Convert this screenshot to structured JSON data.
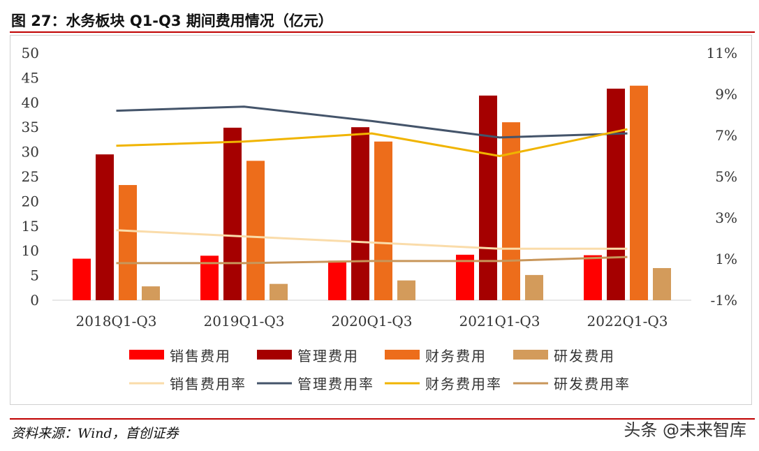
{
  "title": "图 27：水务板块  Q1-Q3 期间费用情况（亿元）",
  "source": "资料来源：Wind，首创证券",
  "watermark": "头条 @未来智库",
  "chart_data": {
    "type": "bar",
    "title": "",
    "categories": [
      "2018Q1-Q3",
      "2019Q1-Q3",
      "2020Q1-Q3",
      "2021Q1-Q3",
      "2022Q1-Q3"
    ],
    "ylim": [
      0,
      50
    ],
    "yticks": [
      0,
      5,
      10,
      15,
      20,
      25,
      30,
      35,
      40,
      45,
      50
    ],
    "y2lim": [
      -1,
      11
    ],
    "y2ticks": [
      -1,
      1,
      3,
      5,
      7,
      9,
      11
    ],
    "y2tick_labels": [
      "-1%",
      "1%",
      "3%",
      "5%",
      "7%",
      "9%",
      "11%"
    ],
    "grid": false,
    "legend_position": "bottom",
    "series": [
      {
        "name": "销售费用",
        "kind": "bar",
        "axis": "left",
        "color": "#ff0000",
        "values": [
          8.4,
          9.0,
          8.0,
          9.2,
          9.1
        ]
      },
      {
        "name": "管理费用",
        "kind": "bar",
        "axis": "left",
        "color": "#a50000",
        "values": [
          29.5,
          34.9,
          35.0,
          41.4,
          42.8
        ]
      },
      {
        "name": "财务费用",
        "kind": "bar",
        "axis": "left",
        "color": "#ed6d1b",
        "values": [
          23.3,
          28.2,
          32.1,
          36.0,
          43.4
        ]
      },
      {
        "name": "研发费用",
        "kind": "bar",
        "axis": "left",
        "color": "#d39b5b",
        "values": [
          2.8,
          3.3,
          4.0,
          5.1,
          6.5
        ]
      },
      {
        "name": "销售费用率",
        "kind": "line",
        "axis": "right",
        "color": "#fadcaa",
        "values": [
          2.4,
          2.1,
          1.8,
          1.5,
          1.5
        ]
      },
      {
        "name": "管理费用率",
        "kind": "line",
        "axis": "right",
        "color": "#44546a",
        "values": [
          8.2,
          8.4,
          7.7,
          6.9,
          7.1
        ]
      },
      {
        "name": "财务费用率",
        "kind": "line",
        "axis": "right",
        "color": "#f0b400",
        "values": [
          6.5,
          6.7,
          7.1,
          6.0,
          7.3
        ]
      },
      {
        "name": "研发费用率",
        "kind": "line",
        "axis": "right",
        "color": "#c8965a",
        "values": [
          0.8,
          0.8,
          0.9,
          0.9,
          1.1
        ]
      }
    ]
  }
}
